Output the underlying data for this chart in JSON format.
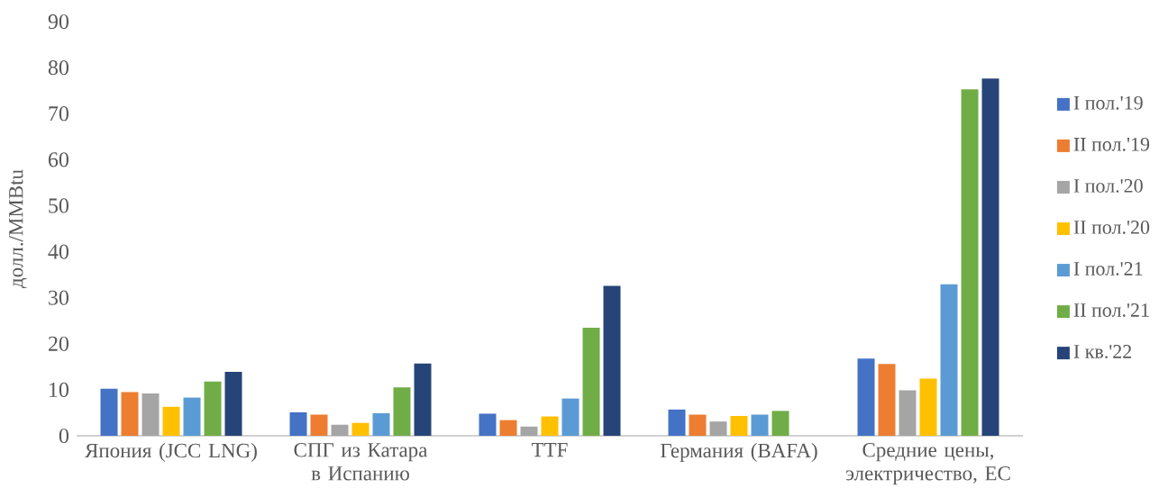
{
  "chart_data": {
    "type": "bar",
    "ylabel": "долл./MMBtu",
    "categories": [
      "Япония (JCC LNG)",
      "СПГ из Катара в Испанию",
      "TTF",
      "Германия (BAFA)",
      "Средние цены, электричество, ЕС"
    ],
    "series": [
      {
        "name": "I пол.'19",
        "color": "#4472c4",
        "values": [
          10.2,
          5.1,
          4.8,
          5.7,
          16.8
        ]
      },
      {
        "name": "II пол.'19",
        "color": "#ed7d31",
        "values": [
          9.5,
          4.6,
          3.4,
          4.6,
          15.6
        ]
      },
      {
        "name": "I пол.'20",
        "color": "#a5a5a5",
        "values": [
          9.2,
          2.4,
          2.0,
          3.1,
          9.9
        ]
      },
      {
        "name": "II пол.'20",
        "color": "#ffc000",
        "values": [
          6.3,
          2.8,
          4.2,
          4.3,
          12.4
        ]
      },
      {
        "name": "I пол.'21",
        "color": "#5b9bd5",
        "values": [
          8.3,
          4.9,
          8.1,
          4.6,
          32.9
        ]
      },
      {
        "name": "II пол.'21",
        "color": "#70ad47",
        "values": [
          11.8,
          10.5,
          23.5,
          5.4,
          75.3
        ]
      },
      {
        "name": "I кв.'22",
        "color": "#264478",
        "values": [
          13.9,
          15.7,
          32.6,
          null,
          77.6
        ]
      }
    ],
    "ylim": [
      0,
      90
    ],
    "yticks": [
      0,
      10,
      20,
      30,
      40,
      50,
      60,
      70,
      80,
      90
    ],
    "grid": false,
    "legend": "right"
  }
}
